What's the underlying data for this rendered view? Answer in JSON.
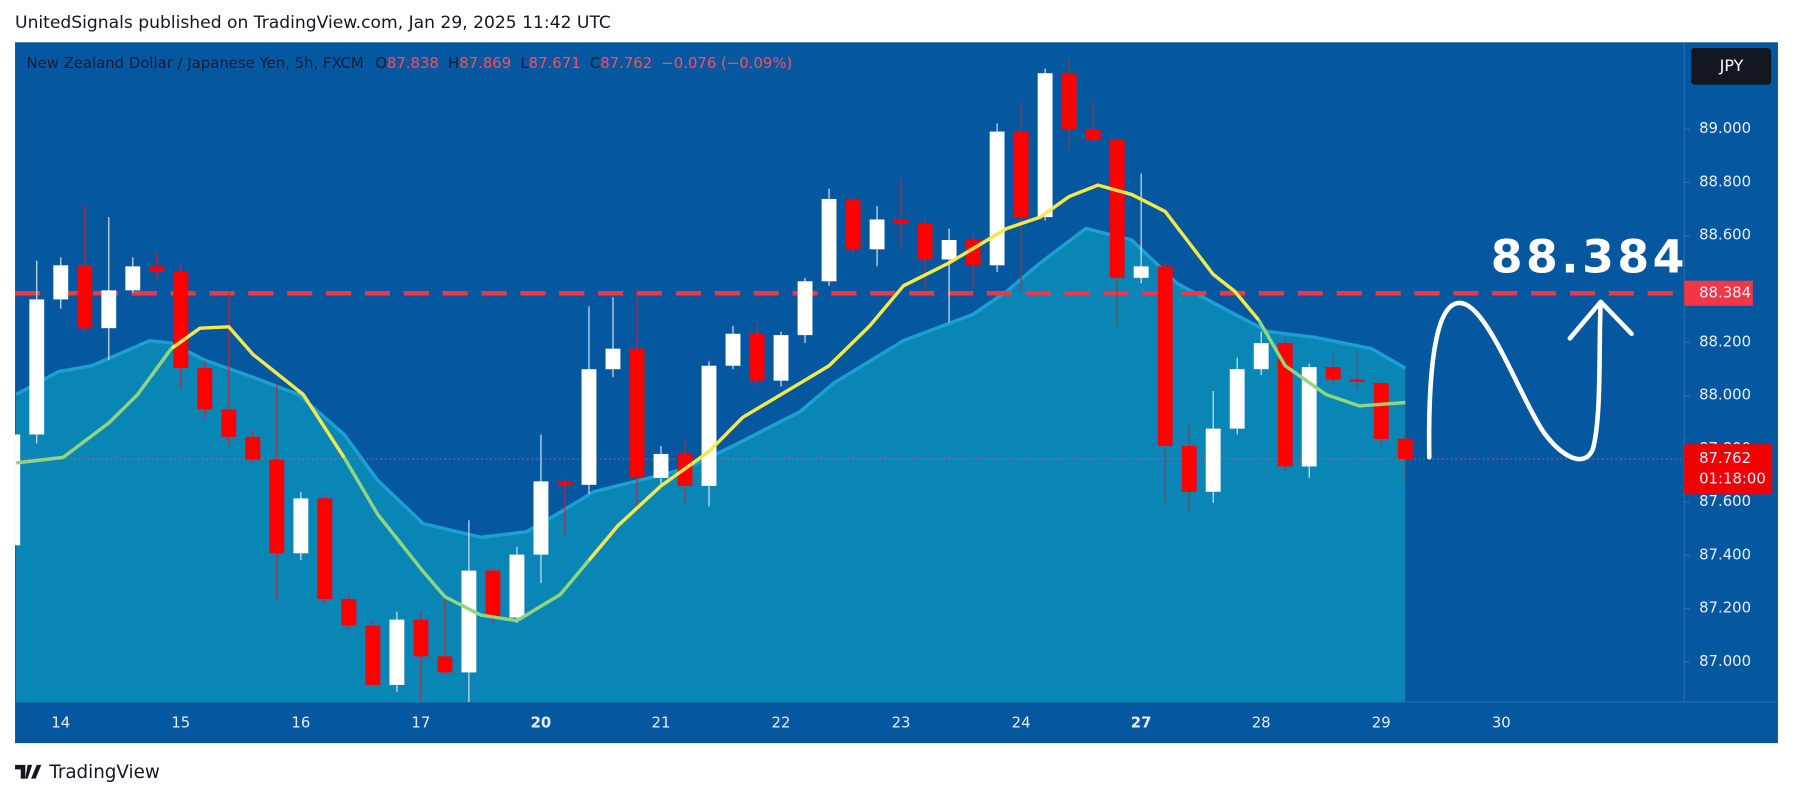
{
  "published": "UnitedSignals published on TradingView.com, Jan 29, 2025 11:42 UTC",
  "brand": "TradingView",
  "header": {
    "symbol": "New Zealand Dollar / Japanese Yen, 5h, FXCM",
    "ohlc": [
      {
        "key": "O",
        "value": "87.838"
      },
      {
        "key": "H",
        "value": "87.869"
      },
      {
        "key": "L",
        "value": "87.671"
      },
      {
        "key": "C",
        "value": "87.762"
      }
    ],
    "change": "−0.076 (−0.09%)"
  },
  "chart_data": {
    "type": "candlestick",
    "currency": "JPY",
    "up_color": "#ffffff",
    "down_color": "#ff0000",
    "categories": [
      null,
      null,
      "14",
      null,
      null,
      null,
      null,
      "15",
      null,
      null,
      null,
      null,
      "16",
      null,
      null,
      null,
      null,
      "17",
      null,
      null,
      null,
      null,
      "20",
      null,
      null,
      null,
      null,
      "21",
      null,
      null,
      null,
      null,
      "22",
      null,
      null,
      null,
      null,
      "23",
      null,
      null,
      null,
      null,
      "24",
      null,
      null,
      null,
      null,
      "27",
      null,
      null,
      null,
      null,
      "28",
      null,
      null,
      null,
      null,
      "29",
      null,
      null,
      null,
      null,
      "30"
    ],
    "open": [
      87.438,
      87.854,
      88.361,
      88.489,
      88.253,
      88.395,
      88.485,
      88.464,
      88.103,
      87.948,
      87.845,
      87.76,
      87.408,
      87.614,
      87.236,
      87.137,
      86.914,
      87.159,
      87.021,
      86.961,
      87.343,
      87.167,
      87.403,
      87.678,
      87.665,
      88.099,
      88.176,
      87.691,
      87.781,
      87.661,
      88.112,
      88.232,
      88.056,
      88.227,
      88.429,
      88.738,
      88.549,
      88.661,
      88.644,
      88.511,
      88.584,
      88.489,
      88.991,
      88.67,
      89.21,
      89.0,
      88.961,
      88.442,
      88.485,
      87.811,
      87.639,
      87.876,
      88.099,
      88.197,
      87.734,
      88.107,
      88.06,
      88.047,
      87.838,
      null,
      null,
      null,
      null
    ],
    "high": [
      87.854,
      88.506,
      88.519,
      88.712,
      88.67,
      88.519,
      88.541,
      88.489,
      88.133,
      88.391,
      87.871,
      88.047,
      87.639,
      87.631,
      87.253,
      87.155,
      87.189,
      87.189,
      87.253,
      87.532,
      87.361,
      87.433,
      87.854,
      87.691,
      88.335,
      88.369,
      88.403,
      87.811,
      87.833,
      88.129,
      88.262,
      88.275,
      88.24,
      88.442,
      88.777,
      88.747,
      88.712,
      88.811,
      88.661,
      88.627,
      88.605,
      89.021,
      89.107,
      89.227,
      89.262,
      89.107,
      88.97,
      88.833,
      88.498,
      87.897,
      88.017,
      88.142,
      88.24,
      88.219,
      88.12,
      88.155,
      88.167,
      88.056,
      87.869,
      null,
      null,
      null,
      null
    ],
    "low": [
      87.438,
      87.82,
      88.326,
      88.24,
      88.133,
      88.386,
      88.433,
      88.026,
      87.914,
      87.811,
      87.747,
      87.232,
      87.382,
      87.219,
      87.124,
      86.91,
      86.888,
      86.858,
      86.953,
      86.845,
      87.146,
      87.146,
      87.296,
      87.476,
      87.631,
      88.069,
      87.575,
      87.661,
      87.597,
      87.584,
      88.099,
      88.034,
      88.034,
      88.197,
      88.412,
      88.532,
      88.485,
      88.562,
      88.391,
      88.275,
      88.403,
      88.464,
      88.391,
      88.657,
      88.927,
      88.948,
      88.262,
      88.421,
      87.597,
      87.562,
      87.597,
      87.854,
      88.077,
      87.717,
      87.691,
      88.043,
      88.026,
      87.811,
      87.671,
      null,
      null,
      null,
      null
    ],
    "close": [
      87.854,
      88.361,
      88.489,
      88.253,
      88.395,
      88.485,
      88.464,
      88.103,
      87.948,
      87.845,
      87.76,
      87.408,
      87.614,
      87.236,
      87.137,
      86.914,
      87.159,
      87.021,
      86.961,
      87.343,
      87.167,
      87.403,
      87.678,
      87.665,
      88.099,
      88.176,
      87.691,
      87.781,
      87.661,
      88.112,
      88.232,
      88.056,
      88.227,
      88.429,
      88.738,
      88.549,
      88.661,
      88.644,
      88.511,
      88.584,
      88.489,
      88.991,
      88.67,
      89.21,
      89.0,
      88.961,
      88.442,
      88.485,
      87.811,
      87.639,
      87.876,
      88.099,
      88.197,
      87.734,
      88.107,
      88.06,
      88.052,
      87.837,
      87.762,
      null,
      null,
      null,
      null
    ],
    "ylim": [
      86.85,
      89.326
    ],
    "yticks": [
      {
        "value": 87,
        "label": "87.000"
      },
      {
        "value": 87.2,
        "label": "87.200"
      },
      {
        "value": 87.4,
        "label": "87.400"
      },
      {
        "value": 87.6,
        "label": "87.600"
      },
      {
        "value": 87.8,
        "label": "87.800"
      },
      {
        "value": 88,
        "label": "88.000"
      },
      {
        "value": 88.2,
        "label": "88.200"
      },
      {
        "value": 88.4,
        "label": "88.400"
      },
      {
        "value": 88.6,
        "label": "88.600"
      },
      {
        "value": 88.8,
        "label": "88.800"
      },
      {
        "value": 89,
        "label": "89.000"
      }
    ],
    "band": {
      "color": "#0a86b6",
      "edge": "#1c9fd2",
      "x": [
        0.14,
        1.9,
        3.3,
        5.7,
        6.6,
        8,
        10,
        11.9,
        13.8,
        15.2,
        17.1,
        19.5,
        21.4,
        22.8,
        24.2,
        26.1,
        28,
        30,
        32.8,
        34.2,
        37.1,
        40,
        41.4,
        42.8,
        44.7,
        46.6,
        48.5,
        50.9,
        52.3,
        54.2,
        56.6,
        58
      ],
      "values": [
        88.004,
        88.09,
        88.112,
        88.206,
        88.197,
        88.133,
        88.069,
        88.004,
        87.854,
        87.682,
        87.519,
        87.468,
        87.489,
        87.562,
        87.639,
        87.682,
        87.725,
        87.811,
        87.94,
        88.047,
        88.206,
        88.305,
        88.391,
        88.498,
        88.627,
        88.584,
        88.421,
        88.305,
        88.24,
        88.219,
        88.176,
        88.103
      ]
    },
    "lines": [
      {
        "color": "#f5e94a",
        "x": [
          6.6,
          7.8,
          9,
          10,
          12.1,
          13.8,
          null,
          24,
          25.2,
          27,
          29,
          30.4,
          32.8,
          34,
          35.7,
          37.1,
          39,
          41.4,
          42.8,
          44,
          45.2,
          46.6,
          48,
          50,
          50.9,
          51.9
        ],
        "values": [
          88.176,
          88.253,
          88.258,
          88.155,
          88.004,
          87.768,
          null,
          87.382,
          87.511,
          87.661,
          87.79,
          87.918,
          88.047,
          88.112,
          88.262,
          88.412,
          88.498,
          88.627,
          88.67,
          88.747,
          88.79,
          88.755,
          88.691,
          88.455,
          88.391,
          88.283
        ]
      },
      {
        "color": "#8fd67f",
        "x": [
          0.14,
          2.1,
          4,
          5.2,
          6.6,
          null,
          13.8,
          15.2,
          17.1,
          18,
          19.5,
          21,
          22.8,
          24,
          null,
          51.9,
          53,
          54.7,
          56.1,
          58
        ],
        "values": [
          87.747,
          87.768,
          87.897,
          88.004,
          88.176,
          null,
          87.768,
          87.554,
          87.339,
          87.245,
          87.176,
          87.155,
          87.253,
          87.382,
          null,
          88.283,
          88.112,
          88.004,
          87.961,
          87.974
        ]
      }
    ],
    "level": {
      "value": 88.384,
      "label": "88.384",
      "color": "#f23645"
    },
    "last_price": {
      "value": 87.762,
      "label": "87.762",
      "countdown": "01:18:00",
      "color": "#f00000"
    }
  }
}
